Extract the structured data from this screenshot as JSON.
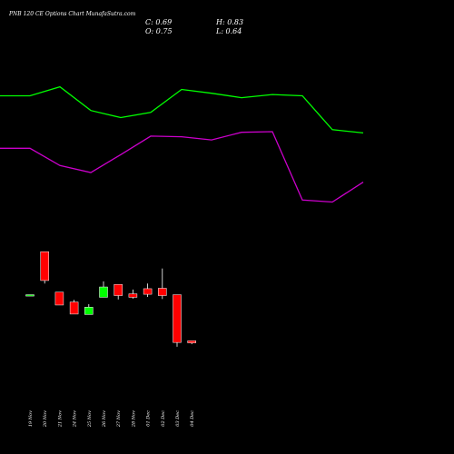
{
  "title": "PNB 120 CE Options  Chart MunafaSutra.com",
  "ohlc": {
    "close_label": "C: 0.69",
    "high_label": "H: 0.83",
    "open_label": "O: 0.75",
    "low_label": "L: 0.64"
  },
  "colors": {
    "background": "#000000",
    "upper_band": "#00ff00",
    "lower_band": "#cc00cc",
    "up_candle": "#00ff00",
    "down_candle": "#ff0000",
    "text": "#ffffff"
  },
  "chart_data": {
    "type": "candlestick",
    "categories": [
      "19 Nov",
      "20 Nov",
      "21 Nov",
      "24 Nov",
      "25 Nov",
      "26 Nov",
      "27 Nov",
      "28 Nov",
      "01 Dec",
      "02 Dec",
      "03 Dec",
      "04 Dec"
    ],
    "ylim": [
      0.5,
      4.3
    ],
    "candles": [
      {
        "date": "19 Nov",
        "open": 2.62,
        "high": 2.62,
        "low": 2.62,
        "close": 2.62,
        "color": "up"
      },
      {
        "date": "20 Nov",
        "open": 3.62,
        "high": 3.62,
        "low": 2.88,
        "close": 2.95,
        "color": "down"
      },
      {
        "date": "21 Nov",
        "open": 2.68,
        "high": 2.68,
        "low": 2.38,
        "close": 2.38,
        "color": "down"
      },
      {
        "date": "24 Nov",
        "open": 2.45,
        "high": 2.5,
        "low": 2.17,
        "close": 2.17,
        "color": "down"
      },
      {
        "date": "25 Nov",
        "open": 2.16,
        "high": 2.4,
        "low": 2.16,
        "close": 2.33,
        "color": "up"
      },
      {
        "date": "26 Nov",
        "open": 2.56,
        "high": 2.93,
        "low": 2.56,
        "close": 2.8,
        "color": "up"
      },
      {
        "date": "27 Nov",
        "open": 2.86,
        "high": 2.86,
        "low": 2.51,
        "close": 2.6,
        "color": "down"
      },
      {
        "date": "28 Nov",
        "open": 2.64,
        "high": 2.74,
        "low": 2.53,
        "close": 2.56,
        "color": "down"
      },
      {
        "date": "01 Dec",
        "open": 2.76,
        "high": 2.88,
        "low": 2.57,
        "close": 2.63,
        "color": "down"
      },
      {
        "date": "02 Dec",
        "open": 2.77,
        "high": 3.23,
        "low": 2.52,
        "close": 2.6,
        "color": "down"
      },
      {
        "date": "03 Dec",
        "open": 2.62,
        "high": 2.62,
        "low": 1.41,
        "close": 1.51,
        "color": "down"
      },
      {
        "date": "04 Dec",
        "open": 1.55,
        "high": 1.55,
        "low": 1.47,
        "close": 1.5,
        "color": "down"
      }
    ],
    "upper_band": [
      4.98,
      4.98,
      5.12,
      4.75,
      4.64,
      4.72,
      5.08,
      5.02,
      4.95,
      5.0,
      4.98,
      4.45,
      4.4
    ],
    "lower_band": [
      4.16,
      4.16,
      3.89,
      3.78,
      4.06,
      4.35,
      4.34,
      4.29,
      4.41,
      4.42,
      3.35,
      3.32,
      3.63
    ],
    "band_x": [
      0,
      33,
      66,
      100,
      133,
      166,
      200,
      233,
      266,
      300,
      333,
      366,
      400
    ]
  }
}
